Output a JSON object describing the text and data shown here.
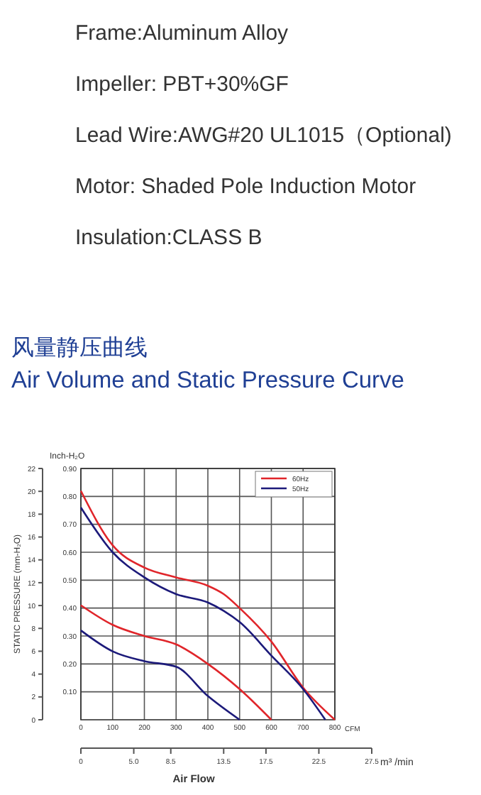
{
  "chart_data": {
    "type": "line",
    "title": "风量静压曲线",
    "subtitle": "Air Volume and Static Pressure Curve",
    "annotations": [
      "Frame:Aluminum Alloy",
      "Impeller: PBT+30%GF",
      "Lead Wire:AWG#20 UL1015（Optional)",
      "Motor: Shaded Pole Induction Motor",
      "Insulation:CLASS B",
      "Air Flow"
    ],
    "xlabel": "CFM",
    "ylabel": "STATIC PRESSURE (mm-H₂O)",
    "y2label": "Inch-H₂O",
    "x2label": "m³ /min",
    "xlim": [
      0,
      800
    ],
    "xticks": [
      0,
      100,
      200,
      300,
      400,
      500,
      600,
      700,
      800
    ],
    "y2lim": [
      0,
      0.9
    ],
    "y2ticks": [
      {
        "value": 0.1,
        "label": "0.10"
      },
      {
        "value": 0.2,
        "label": "0.20"
      },
      {
        "value": 0.3,
        "label": "0.30"
      },
      {
        "value": 0.4,
        "label": "0.40"
      },
      {
        "value": 0.5,
        "label": "0.50"
      },
      {
        "value": 0.6,
        "label": "0.60"
      },
      {
        "value": 0.7,
        "label": "0.70"
      },
      {
        "value": 0.8,
        "label": "0.80"
      },
      {
        "value": 0.9,
        "label": "0.90"
      }
    ],
    "ylim": [
      0,
      22
    ],
    "yticks": [
      0,
      2,
      4,
      6,
      8,
      10,
      12,
      14,
      16,
      18,
      20,
      22
    ],
    "x2lim": [
      0,
      27.5
    ],
    "x2ticks": [
      0,
      {
        "value": 5,
        "label": "5.0"
      },
      8.5,
      13.5,
      17.5,
      22.5,
      27.5
    ],
    "grid": true,
    "legend": "top right",
    "line_style": "solid",
    "series": [
      {
        "name": "60Hz",
        "axis": "y2",
        "color": "#e0252a",
        "x": [
          0,
          100,
          200,
          300,
          400,
          450,
          500,
          600,
          700,
          800
        ],
        "values": [
          0.82,
          0.625,
          0.545,
          0.51,
          0.48,
          0.45,
          0.4,
          0.28,
          0.115,
          0
        ]
      },
      {
        "name": "50Hz",
        "axis": "y2",
        "color": "#1c1a7a",
        "x": [
          0,
          100,
          200,
          300,
          400,
          450,
          500,
          600,
          700,
          770
        ],
        "values": [
          0.76,
          0.6,
          0.51,
          0.45,
          0.42,
          0.39,
          0.35,
          0.23,
          0.11,
          0
        ]
      },
      {
        "axis": "y2",
        "color": "#e0252a",
        "x": [
          0,
          100,
          200,
          300,
          400,
          500,
          600
        ],
        "values": [
          0.41,
          0.34,
          0.3,
          0.27,
          0.2,
          0.11,
          0
        ]
      },
      {
        "axis": "y2",
        "color": "#1c1a7a",
        "x": [
          0,
          100,
          200,
          300,
          400,
          500
        ],
        "values": [
          0.32,
          0.245,
          0.21,
          0.19,
          0.085,
          0
        ]
      }
    ]
  }
}
